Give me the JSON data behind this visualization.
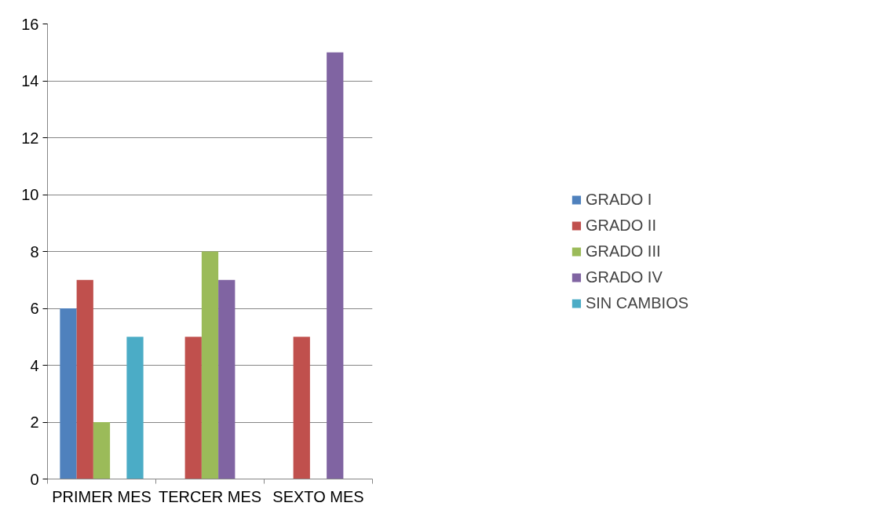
{
  "chart_data": {
    "type": "bar",
    "categories": [
      "PRIMER MES",
      "TERCER MES",
      "SEXTO MES"
    ],
    "series": [
      {
        "name": "GRADO I",
        "color": "#4f81bd",
        "values": [
          6,
          0,
          0
        ]
      },
      {
        "name": "GRADO II",
        "color": "#c0504d",
        "values": [
          7,
          5,
          5
        ]
      },
      {
        "name": "GRADO III",
        "color": "#9bbb59",
        "values": [
          2,
          8,
          0
        ]
      },
      {
        "name": "GRADO IV",
        "color": "#8064a2",
        "values": [
          0,
          7,
          15
        ]
      },
      {
        "name": "SIN CAMBIOS",
        "color": "#4bacc6",
        "values": [
          5,
          0,
          0
        ]
      }
    ],
    "ylim": [
      0,
      16
    ],
    "yticks": [
      0,
      2,
      4,
      6,
      8,
      10,
      12,
      14,
      16
    ],
    "grid": "y",
    "legend": "right"
  }
}
